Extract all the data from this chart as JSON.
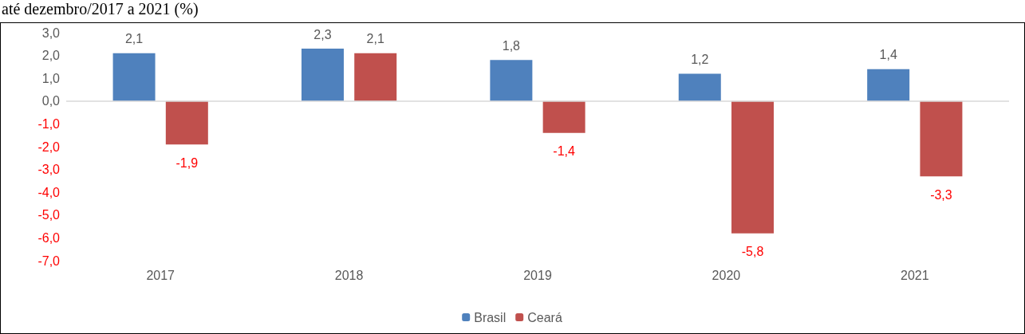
{
  "chart_data": {
    "type": "bar",
    "title": "até dezembro/2017 a 2021 (%)",
    "categories": [
      "2017",
      "2018",
      "2019",
      "2020",
      "2021"
    ],
    "series": [
      {
        "name": "Brasil",
        "color": "#4f81bd",
        "values": [
          2.1,
          2.3,
          1.8,
          1.2,
          1.4
        ],
        "value_labels": [
          "2,1",
          "2,3",
          "1,8",
          "1,2",
          "1,4"
        ]
      },
      {
        "name": "Ceará",
        "color": "#c0504d",
        "values": [
          -1.9,
          2.1,
          -1.4,
          -5.8,
          -3.3
        ],
        "value_labels": [
          "-1,9",
          "2,1",
          "-1,4",
          "-5,8",
          "-3,3"
        ]
      }
    ],
    "ylim": [
      -7,
      3
    ],
    "yticks": [
      {
        "value": 3,
        "label": "3,0"
      },
      {
        "value": 2,
        "label": "2,0"
      },
      {
        "value": 1,
        "label": "1,0"
      },
      {
        "value": 0,
        "label": "0,0"
      },
      {
        "value": -1,
        "label": "-1,0"
      },
      {
        "value": -2,
        "label": "-2,0"
      },
      {
        "value": -3,
        "label": "-3,0"
      },
      {
        "value": -4,
        "label": "-4,0"
      },
      {
        "value": -5,
        "label": "-5,0"
      },
      {
        "value": -6,
        "label": "-6,0"
      },
      {
        "value": -7,
        "label": "-7,0"
      }
    ],
    "ref_lines": [
      {
        "axis": "y",
        "value": 0,
        "color": "#d9d9d9"
      }
    ],
    "grid": false,
    "legend": "bottom"
  }
}
